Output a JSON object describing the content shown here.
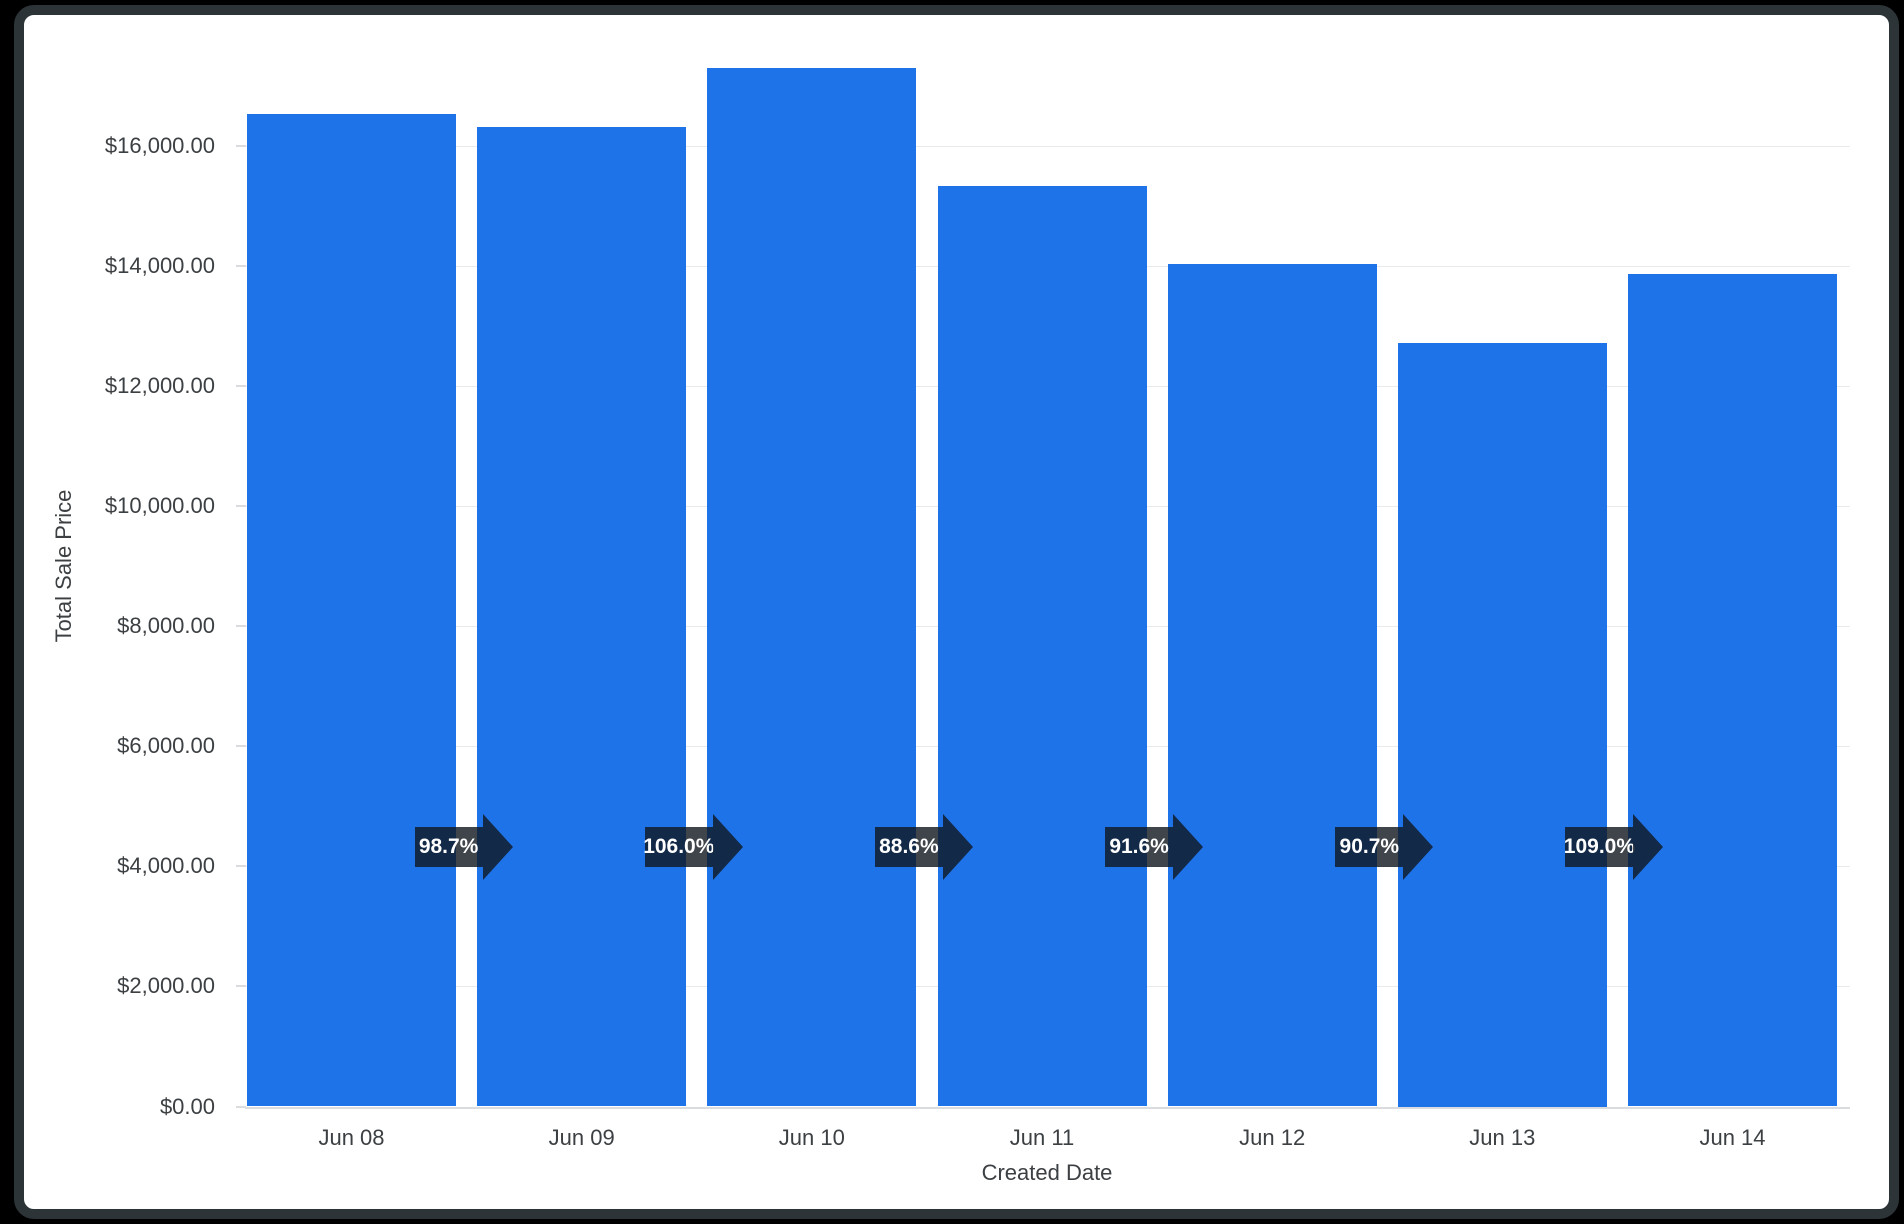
{
  "chart_data": {
    "type": "bar",
    "title": "",
    "categories": [
      "Jun 08",
      "Jun 09",
      "Jun 10",
      "Jun 11",
      "Jun 12",
      "Jun 13",
      "Jun 14"
    ],
    "series": [
      {
        "name": "Total Sale Price",
        "values": [
          16520,
          16305,
          17285,
          15320,
          14020,
          12720,
          13860
        ]
      }
    ],
    "pct_of_previous_badges": [
      "98.7%",
      "106.0%",
      "88.6%",
      "91.6%",
      "90.7%",
      "109.0%"
    ],
    "xlabel": "Created Date",
    "ylabel": "Total Sale Price",
    "ylim": [
      0,
      18000
    ],
    "ytick_interval": 2000,
    "ytick_labels": [
      "$0.00",
      "$2,000.00",
      "$4,000.00",
      "$6,000.00",
      "$8,000.00",
      "$10,000.00",
      "$12,000.00",
      "$14,000.00",
      "$16,000.00"
    ],
    "grid": "horizontal",
    "legend": "none",
    "colors": {
      "bar": "#1e73e8",
      "gridline": "#e8eaed",
      "axis_line": "#dadce0",
      "axis_text": "#3c4043",
      "badge_bg": "rgba(15,22,30,0.8)",
      "badge_text": "#ffffff",
      "frame": "#2d3437",
      "outer_background": "#000000"
    }
  }
}
